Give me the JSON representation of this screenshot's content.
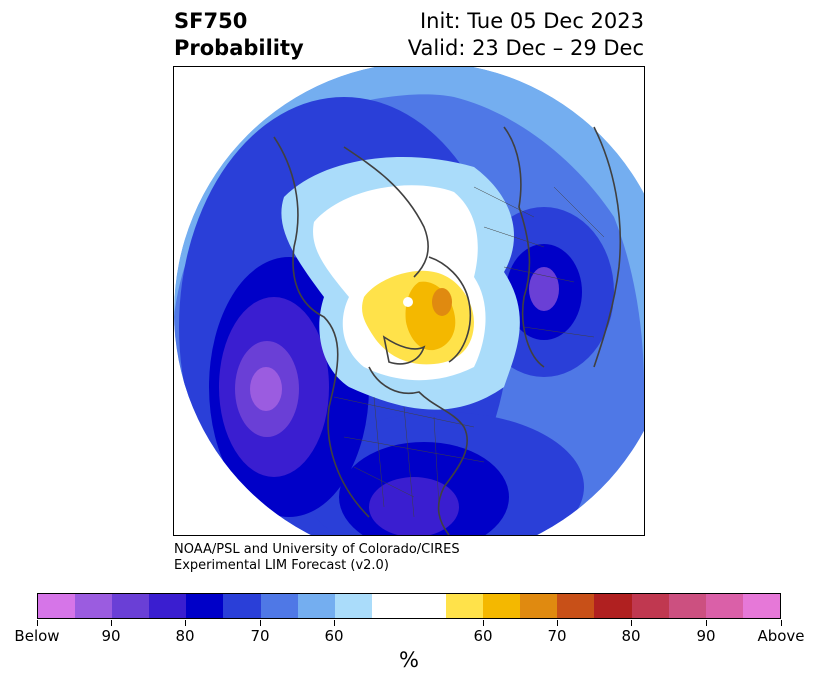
{
  "header": {
    "title_line1": "SF750",
    "title_line2": "Probability",
    "init": "Init: Tue 05 Dec 2023",
    "valid": "Valid: 23 Dec – 29 Dec"
  },
  "credit": {
    "line1": "NOAA/PSL and University of Colorado/CIRES",
    "line2": "Experimental LIM Forecast (v2.0)"
  },
  "colorbar": {
    "colors": [
      "#d675e8",
      "#9b5ce0",
      "#6a3fd6",
      "#3a1ed0",
      "#0000c8",
      "#2a3fd8",
      "#4f78e6",
      "#74aef0",
      "#aadcfa",
      "#ffffff",
      "#ffffff",
      "#ffe24a",
      "#f4b800",
      "#e08a10",
      "#c85018",
      "#b02020",
      "#c03850",
      "#cc5080",
      "#da60a8",
      "#e678d8"
    ],
    "labels": [
      "Below",
      "90",
      "80",
      "70",
      "60",
      "60",
      "70",
      "80",
      "90",
      "Above"
    ],
    "unit": "%"
  },
  "map": {
    "colors": {
      "lightest_blue": "#aadcfa",
      "light_blue": "#74aef0",
      "mid_blue": "#4f78e6",
      "blue": "#2a3fd8",
      "deep_blue": "#0000c8",
      "indigo": "#3a1ed0",
      "violet": "#6a3fd6",
      "purple": "#9b5ce0",
      "yellow": "#ffe24a",
      "gold": "#f4b800",
      "orange": "#e08a10",
      "coastline": "#404040"
    }
  }
}
